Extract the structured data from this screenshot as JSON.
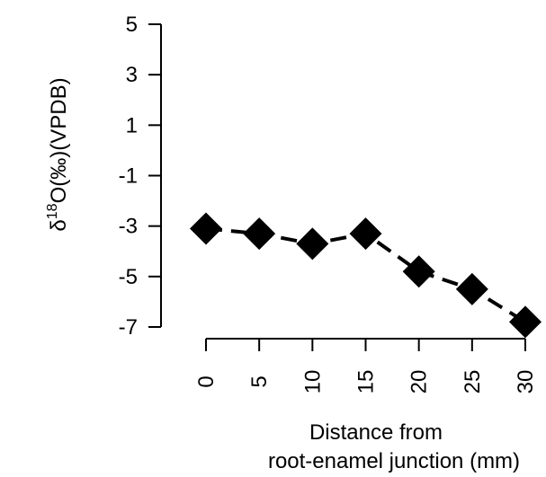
{
  "chart_data": {
    "type": "line",
    "xlabel_lines": [
      "Distance from",
      "root-enamel junction (mm)"
    ],
    "ylabel_parts": {
      "delta": "δ",
      "sup": "18",
      "rest": "O(‰)(VPDB)"
    },
    "x_ticks": [
      0,
      5,
      10,
      15,
      20,
      25,
      30
    ],
    "y_ticks": [
      5,
      3,
      1,
      -1,
      -3,
      -5,
      -7
    ],
    "xlim": [
      0,
      30
    ],
    "ylim": [
      -7,
      5
    ],
    "grid": false,
    "line_style": "dashed",
    "marker": "filled-diamond",
    "color": "#000000",
    "series": [
      {
        "x": [
          0,
          5,
          10,
          15,
          20,
          25,
          30
        ],
        "y": [
          -3.1,
          -3.3,
          -3.7,
          -3.3,
          -4.8,
          -5.5,
          -6.8
        ]
      }
    ]
  }
}
